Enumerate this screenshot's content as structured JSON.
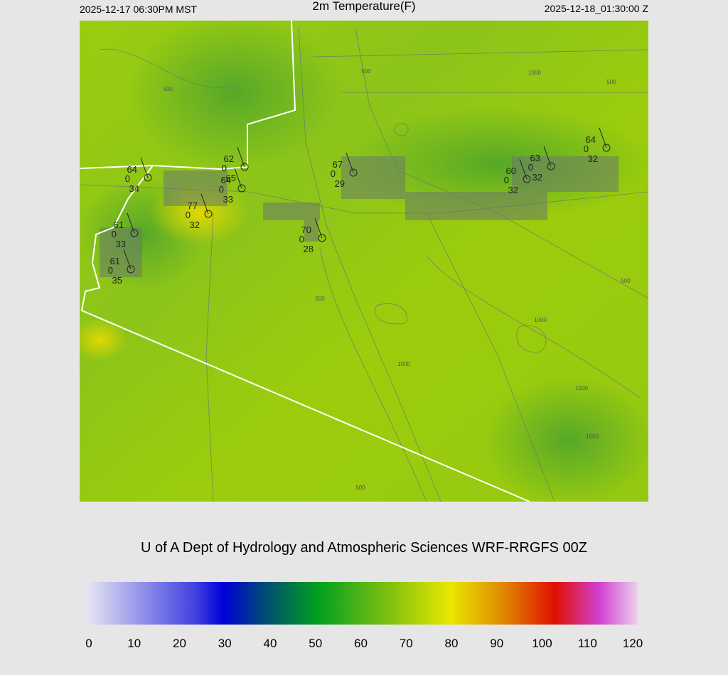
{
  "header": {
    "left": "2025-12-17 06:30PM MST",
    "title": "2m Temperature(F)",
    "right": "2025-12-18_01:30:00 Z"
  },
  "footer": "U of A Dept of Hydrology and Atmospheric Sciences WRF-RRGFS 00Z",
  "stations": [
    {
      "temperature": "64",
      "pressure": "0",
      "dewpoint": "34"
    },
    {
      "temperature": "62",
      "pressure": "0",
      "dewpoint": "65"
    },
    {
      "temperature": "64",
      "pressure": "0",
      "dewpoint": "33"
    },
    {
      "temperature": "77",
      "pressure": "0",
      "dewpoint": "32"
    },
    {
      "temperature": "61",
      "pressure": "0",
      "dewpoint": "33"
    },
    {
      "temperature": "61",
      "pressure": "0",
      "dewpoint": "35"
    },
    {
      "temperature": "70",
      "pressure": "0",
      "dewpoint": "28"
    },
    {
      "temperature": "67",
      "pressure": "0",
      "dewpoint": "29"
    },
    {
      "temperature": "60",
      "pressure": "0",
      "dewpoint": "32"
    },
    {
      "temperature": "63",
      "pressure": "0",
      "dewpoint": "32"
    },
    {
      "temperature": "64",
      "pressure": "0",
      "dewpoint": "32"
    }
  ],
  "contour_labels": [
    "500",
    "500",
    "1000",
    "500",
    "500",
    "500",
    "1000",
    "1000",
    "1000",
    "1500",
    "500"
  ],
  "colorbar": {
    "range": [
      0,
      120
    ],
    "ticks": [
      0,
      10,
      20,
      30,
      40,
      50,
      60,
      70,
      80,
      90,
      100,
      110,
      120
    ]
  }
}
